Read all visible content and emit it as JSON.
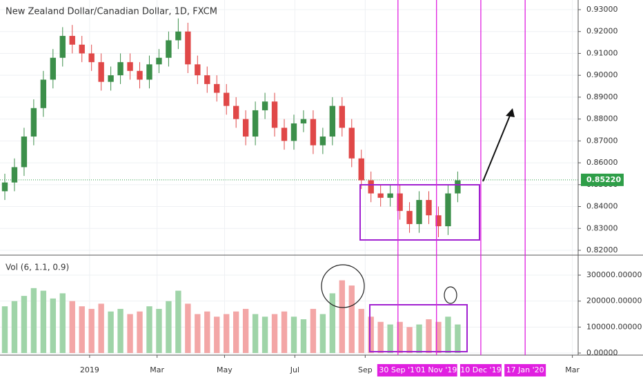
{
  "chart_data": {
    "type": "candlestick",
    "title": "New Zealand Dollar/Canadian Dollar, 1D, FXCM",
    "volume_title": "Vol (6, 1.1, 0.9)",
    "up_color": "#3c8f4a",
    "down_color": "#e04848",
    "volume_up_color": "#9fd4a8",
    "volume_down_color": "#f3a6a6",
    "x": [
      0,
      1,
      2,
      3,
      4,
      5,
      6,
      7,
      8,
      9,
      10,
      11,
      12,
      13,
      14,
      15,
      16,
      17,
      18,
      19,
      20,
      21,
      22,
      23,
      24,
      25,
      26,
      27,
      28,
      29,
      30,
      31,
      32,
      33,
      34,
      35,
      36,
      37,
      38,
      39,
      40,
      41,
      42,
      43,
      44,
      45,
      46,
      47
    ],
    "open": [
      0.847,
      0.851,
      0.858,
      0.872,
      0.885,
      0.898,
      0.908,
      0.918,
      0.914,
      0.91,
      0.906,
      0.897,
      0.9,
      0.906,
      0.902,
      0.898,
      0.905,
      0.908,
      0.916,
      0.92,
      0.905,
      0.9,
      0.896,
      0.892,
      0.886,
      0.88,
      0.872,
      0.884,
      0.888,
      0.876,
      0.87,
      0.878,
      0.88,
      0.868,
      0.872,
      0.886,
      0.876,
      0.862,
      0.852,
      0.846,
      0.844,
      0.846,
      0.838,
      0.832,
      0.843,
      0.836,
      0.831,
      0.846
    ],
    "high": [
      0.855,
      0.862,
      0.876,
      0.889,
      0.902,
      0.912,
      0.922,
      0.923,
      0.918,
      0.914,
      0.91,
      0.904,
      0.91,
      0.91,
      0.906,
      0.909,
      0.912,
      0.92,
      0.926,
      0.924,
      0.909,
      0.904,
      0.9,
      0.896,
      0.89,
      0.884,
      0.888,
      0.892,
      0.892,
      0.88,
      0.882,
      0.884,
      0.884,
      0.876,
      0.89,
      0.89,
      0.88,
      0.866,
      0.856,
      0.85,
      0.85,
      0.85,
      0.842,
      0.847,
      0.847,
      0.84,
      0.85,
      0.856
    ],
    "low": [
      0.843,
      0.847,
      0.854,
      0.868,
      0.881,
      0.894,
      0.904,
      0.91,
      0.906,
      0.902,
      0.893,
      0.893,
      0.896,
      0.898,
      0.894,
      0.894,
      0.901,
      0.904,
      0.912,
      0.901,
      0.896,
      0.892,
      0.888,
      0.882,
      0.876,
      0.868,
      0.868,
      0.88,
      0.872,
      0.866,
      0.866,
      0.874,
      0.864,
      0.864,
      0.868,
      0.872,
      0.858,
      0.848,
      0.842,
      0.84,
      0.84,
      0.834,
      0.828,
      0.828,
      0.832,
      0.826,
      0.827,
      0.842
    ],
    "close": [
      0.851,
      0.858,
      0.872,
      0.885,
      0.898,
      0.908,
      0.918,
      0.914,
      0.91,
      0.906,
      0.897,
      0.9,
      0.906,
      0.902,
      0.898,
      0.905,
      0.908,
      0.916,
      0.92,
      0.905,
      0.9,
      0.896,
      0.892,
      0.886,
      0.88,
      0.872,
      0.884,
      0.888,
      0.876,
      0.87,
      0.878,
      0.88,
      0.868,
      0.872,
      0.886,
      0.876,
      0.862,
      0.852,
      0.846,
      0.844,
      0.846,
      0.838,
      0.832,
      0.843,
      0.836,
      0.831,
      0.846,
      0.852
    ],
    "volume": [
      180000,
      200000,
      220000,
      250000,
      240000,
      210000,
      230000,
      200000,
      180000,
      170000,
      190000,
      160000,
      170000,
      150000,
      160000,
      180000,
      170000,
      200000,
      240000,
      190000,
      150000,
      160000,
      140000,
      150000,
      160000,
      170000,
      150000,
      140000,
      150000,
      160000,
      140000,
      130000,
      170000,
      150000,
      230000,
      280000,
      260000,
      170000,
      140000,
      120000,
      110000,
      120000,
      100000,
      110000,
      130000,
      120000,
      140000,
      110000
    ],
    "xlim": [
      -0.5,
      59.5
    ],
    "xticks": [
      {
        "value": 8.8,
        "label": "2019"
      },
      {
        "value": 15.8,
        "label": "Mar"
      },
      {
        "value": 22.8,
        "label": "May"
      },
      {
        "value": 30.1,
        "label": "Jul"
      },
      {
        "value": 37.4,
        "label": "Sep"
      },
      {
        "value": 58.9,
        "label": "Mar"
      }
    ],
    "date_markers": {
      "color": "#e020e0",
      "items": [
        {
          "value": 40.8,
          "label": "30 Sep '1'"
        },
        {
          "value": 44.8,
          "label": "01 Nov '19"
        },
        {
          "value": 49.4,
          "label": "10 Dec '19"
        },
        {
          "value": 54.0,
          "label": "17 Jan '20"
        }
      ]
    },
    "ylim": [
      0.82,
      0.93
    ],
    "yticks": [
      {
        "value": 0.82,
        "label": "0.82000"
      },
      {
        "value": 0.83,
        "label": "0.83000"
      },
      {
        "value": 0.84,
        "label": "0.84000"
      },
      {
        "value": 0.85,
        "label": "0.85000"
      },
      {
        "value": 0.86,
        "label": "0.86000"
      },
      {
        "value": 0.87,
        "label": "0.87000"
      },
      {
        "value": 0.88,
        "label": "0.88000"
      },
      {
        "value": 0.89,
        "label": "0.89000"
      },
      {
        "value": 0.9,
        "label": "0.90000"
      },
      {
        "value": 0.91,
        "label": "0.91000"
      },
      {
        "value": 0.92,
        "label": "0.92000"
      },
      {
        "value": 0.93,
        "label": "0.93000"
      }
    ],
    "last_price": {
      "value": 0.8522,
      "label": "0.85220",
      "color": "#2e9e48"
    },
    "y2lim": [
      0,
      300000
    ],
    "y2ticks": [
      {
        "value": 0,
        "label": "0.00000"
      },
      {
        "value": 100000,
        "label": "100000.00000"
      },
      {
        "value": 200000,
        "label": "200000.00000"
      },
      {
        "value": 300000,
        "label": "300000.00000"
      }
    ],
    "grid": true
  }
}
